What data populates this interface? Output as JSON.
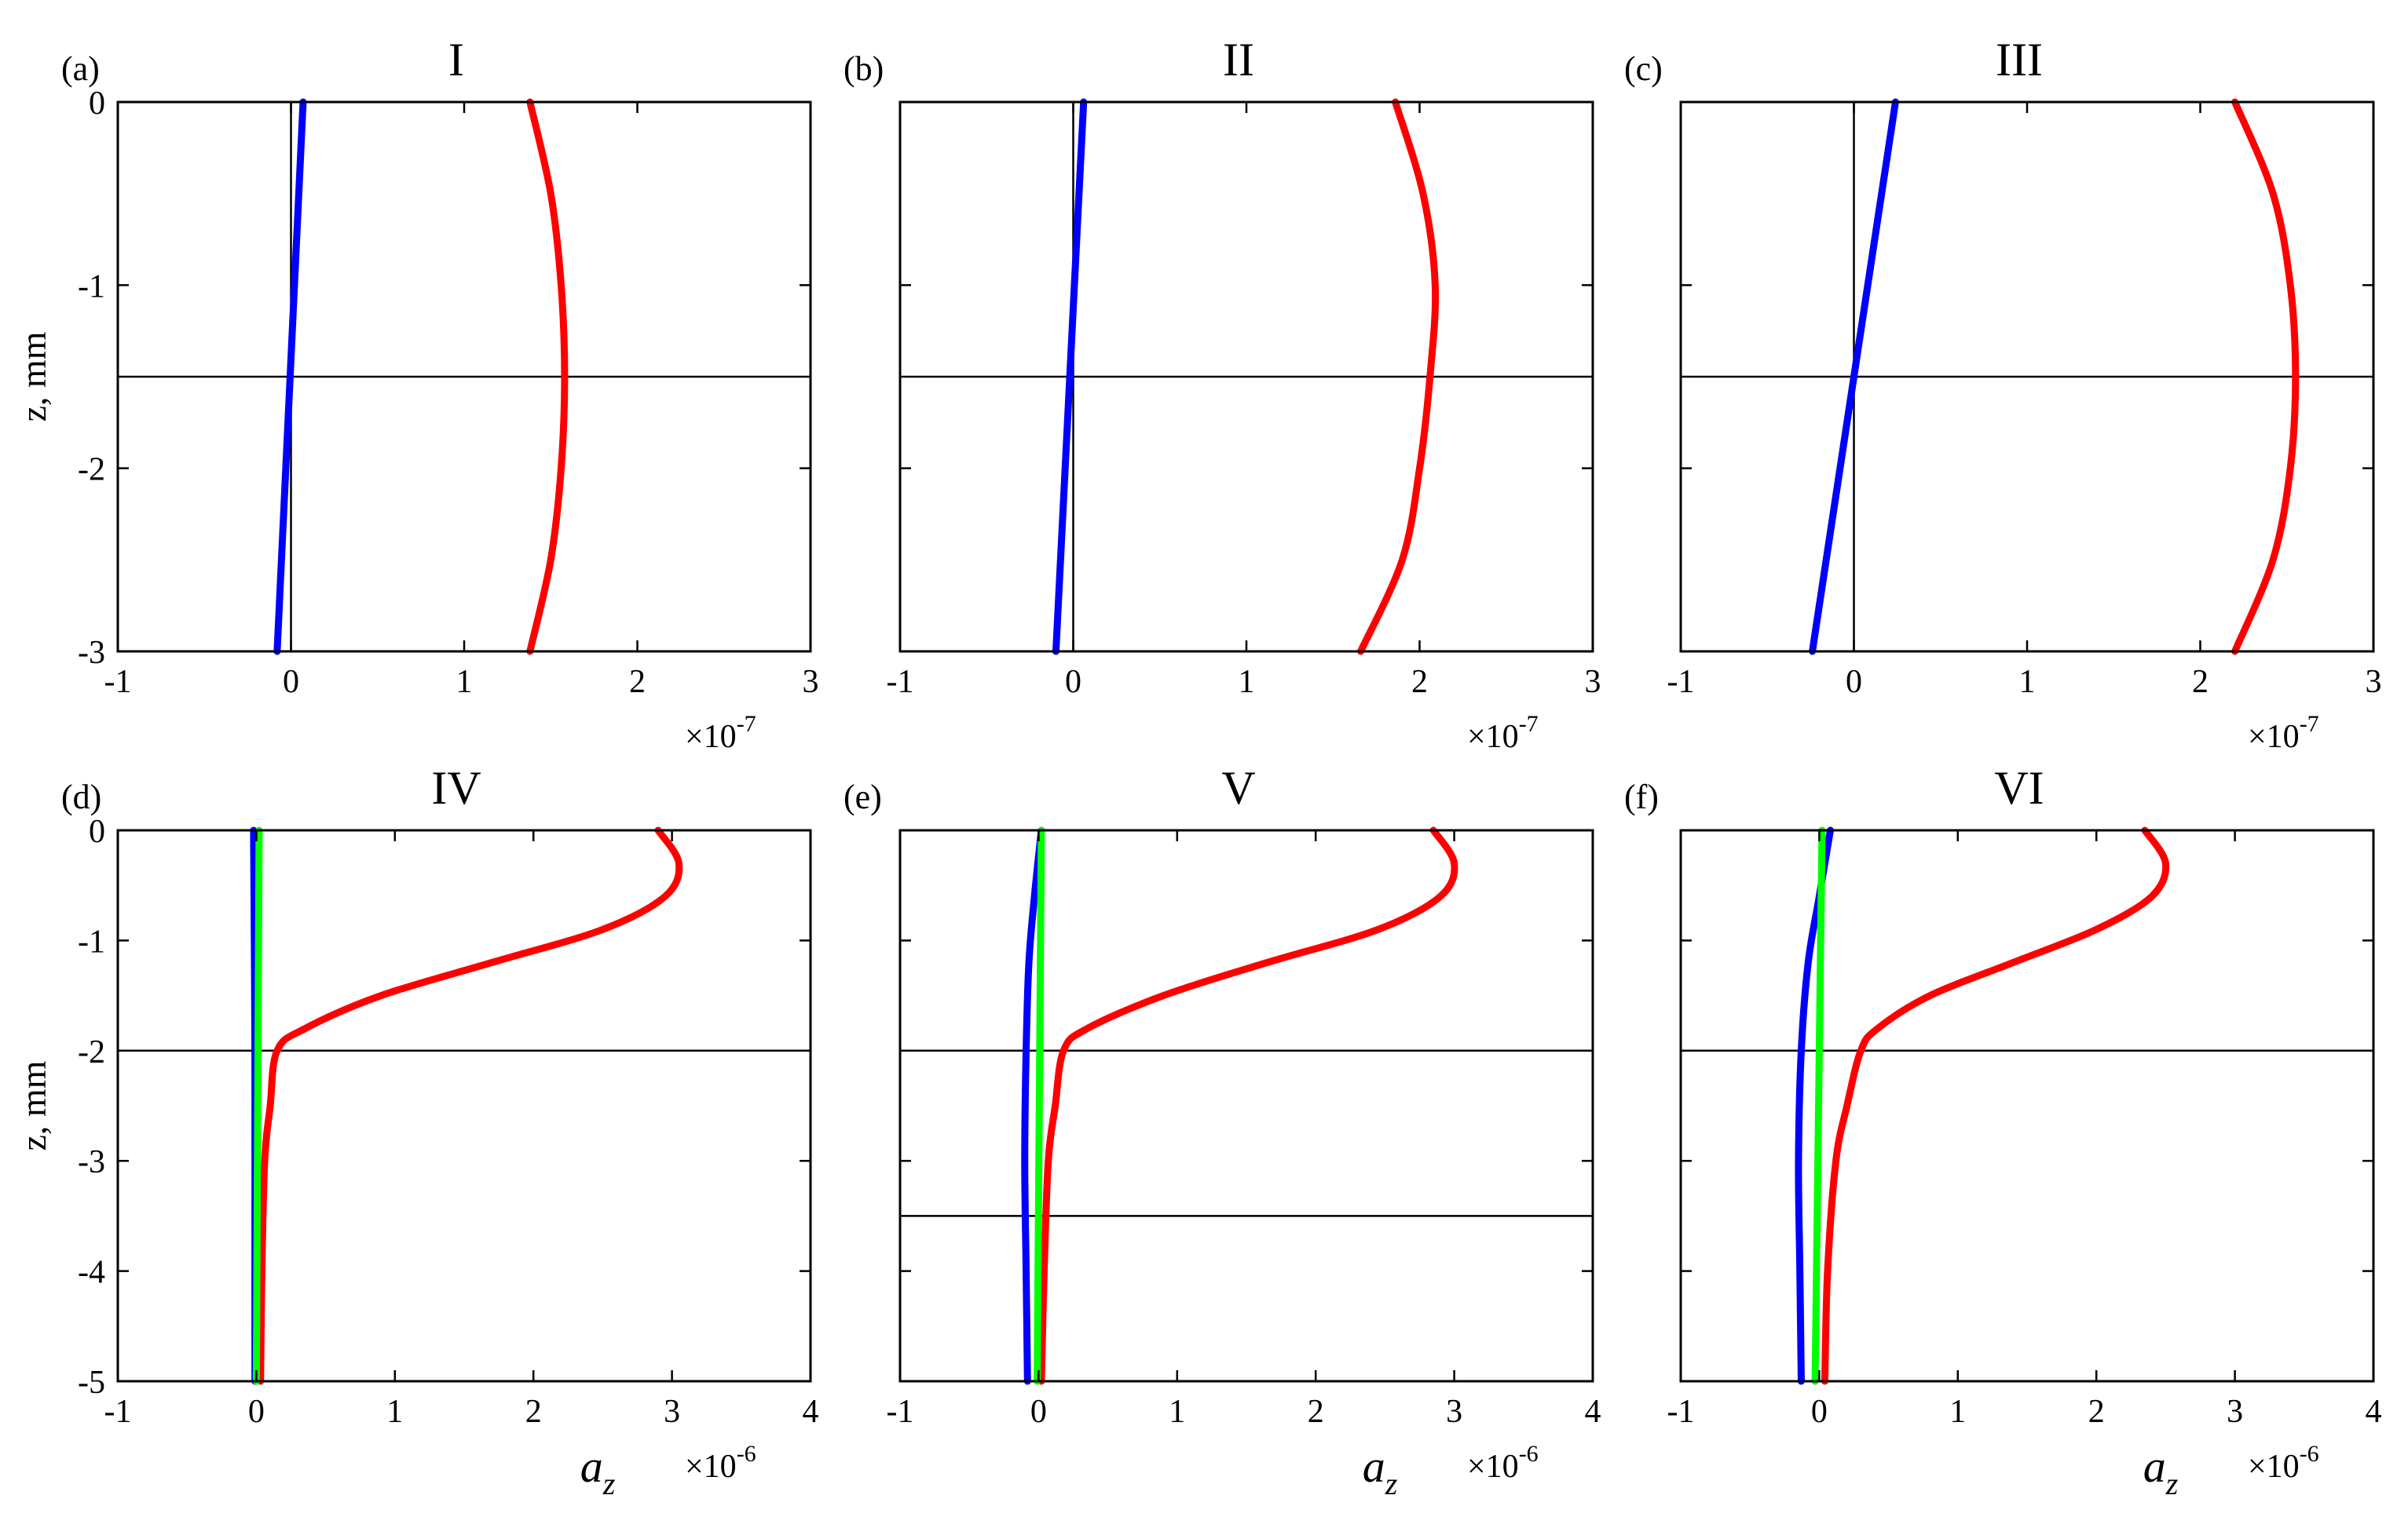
{
  "chart_data": [
    {
      "type": "line",
      "panel_label": "(a)",
      "title": "I",
      "xlabel": "",
      "ylabel": "z, mm",
      "x_multiplier": {
        "base": "×10",
        "exponent": "-7"
      },
      "xlim": [
        -1,
        3
      ],
      "ylim": [
        -3,
        0
      ],
      "xticks": [
        "-1",
        "0",
        "1",
        "2",
        "3"
      ],
      "yticks": [
        "0",
        "-1",
        "-2",
        "-3"
      ],
      "hlines": [
        -1.5
      ],
      "vlines": [
        0
      ],
      "series": [
        {
          "name": "red",
          "color": "#ff0000",
          "x": [
            1.38,
            1.5,
            1.56,
            1.58,
            1.56,
            1.5,
            1.38
          ],
          "y": [
            0,
            -0.5,
            -1.0,
            -1.5,
            -2.0,
            -2.5,
            -3.0
          ]
        },
        {
          "name": "blue",
          "color": "#0000ff",
          "x": [
            0.07,
            -0.08
          ],
          "y": [
            0,
            -3.0
          ]
        }
      ]
    },
    {
      "type": "line",
      "panel_label": "(b)",
      "title": "II",
      "xlabel": "",
      "ylabel": "",
      "x_multiplier": {
        "base": "×10",
        "exponent": "-7"
      },
      "xlim": [
        -1,
        3
      ],
      "ylim": [
        -3,
        0
      ],
      "xticks": [
        "-1",
        "0",
        "1",
        "2",
        "3"
      ],
      "yticks": [],
      "hlines": [
        -1.5
      ],
      "vlines": [
        0
      ],
      "series": [
        {
          "name": "red",
          "color": "#ff0000",
          "x": [
            1.86,
            2.02,
            2.09,
            2.06,
            2.0,
            1.9,
            1.66
          ],
          "y": [
            0,
            -0.5,
            -1.0,
            -1.5,
            -2.0,
            -2.5,
            -3.0
          ]
        },
        {
          "name": "blue",
          "color": "#0000ff",
          "x": [
            0.06,
            -0.1
          ],
          "y": [
            0,
            -3.0
          ]
        }
      ]
    },
    {
      "type": "line",
      "panel_label": "(c)",
      "title": "III",
      "xlabel": "",
      "ylabel": "",
      "x_multiplier": {
        "base": "×10",
        "exponent": "-7"
      },
      "xlim": [
        -1,
        3
      ],
      "ylim": [
        -3,
        0
      ],
      "xticks": [
        "-1",
        "0",
        "1",
        "2",
        "3"
      ],
      "yticks": [],
      "hlines": [
        -1.5
      ],
      "vlines": [
        0
      ],
      "series": [
        {
          "name": "red",
          "color": "#ff0000",
          "x": [
            2.2,
            2.42,
            2.52,
            2.55,
            2.52,
            2.42,
            2.2
          ],
          "y": [
            0,
            -0.5,
            -1.0,
            -1.5,
            -2.0,
            -2.5,
            -3.0
          ]
        },
        {
          "name": "blue",
          "color": "#0000ff",
          "x": [
            0.24,
            -0.24
          ],
          "y": [
            0,
            -3.0
          ]
        }
      ]
    },
    {
      "type": "line",
      "panel_label": "(d)",
      "title": "IV",
      "xlabel": "a_z",
      "ylabel": "z, mm",
      "x_multiplier": {
        "base": "×10",
        "exponent": "-6"
      },
      "xlim": [
        -1,
        4
      ],
      "ylim": [
        -5,
        0
      ],
      "xticks": [
        "-1",
        "0",
        "1",
        "2",
        "3",
        "4"
      ],
      "yticks": [
        "0",
        "-1",
        "-2",
        "-3",
        "-4",
        "-5"
      ],
      "hlines": [
        -2
      ],
      "vlines": [],
      "series": [
        {
          "name": "red",
          "color": "#ff0000",
          "x": [
            2.9,
            3.05,
            2.95,
            2.5,
            1.7,
            0.9,
            0.35,
            0.15,
            0.1,
            0.06,
            0.04,
            0.03
          ],
          "y": [
            0,
            -0.3,
            -0.6,
            -0.9,
            -1.2,
            -1.5,
            -1.8,
            -2.0,
            -2.5,
            -3.0,
            -4.0,
            -5.0
          ]
        },
        {
          "name": "blue",
          "color": "#0000ff",
          "x": [
            -0.02,
            -0.01,
            -0.01,
            -0.01
          ],
          "y": [
            0,
            -2.0,
            -3.5,
            -5.0
          ]
        },
        {
          "name": "green",
          "color": "#00ff00",
          "x": [
            0.02,
            0.0
          ],
          "y": [
            0,
            -5.0
          ]
        }
      ]
    },
    {
      "type": "line",
      "panel_label": "(e)",
      "title": "V",
      "xlabel": "a_z",
      "ylabel": "",
      "x_multiplier": {
        "base": "×10",
        "exponent": "-6"
      },
      "xlim": [
        -1,
        4
      ],
      "ylim": [
        -5,
        0
      ],
      "xticks": [
        "-1",
        "0",
        "1",
        "2",
        "3",
        "4"
      ],
      "yticks": [],
      "hlines": [
        -2,
        -3.5
      ],
      "vlines": [],
      "series": [
        {
          "name": "red",
          "color": "#ff0000",
          "x": [
            2.85,
            3.0,
            2.9,
            2.45,
            1.65,
            0.9,
            0.35,
            0.18,
            0.12,
            0.07,
            0.04,
            0.02
          ],
          "y": [
            0,
            -0.3,
            -0.6,
            -0.9,
            -1.2,
            -1.5,
            -1.8,
            -2.0,
            -2.5,
            -3.0,
            -4.0,
            -5.0
          ]
        },
        {
          "name": "blue",
          "color": "#0000ff",
          "x": [
            0.02,
            -0.03,
            -0.07,
            -0.09,
            -0.1,
            -0.09,
            -0.08
          ],
          "y": [
            0,
            -0.6,
            -1.2,
            -2.0,
            -3.0,
            -4.0,
            -5.0
          ]
        },
        {
          "name": "green",
          "color": "#00ff00",
          "x": [
            0.02,
            -0.01
          ],
          "y": [
            0,
            -5.0
          ]
        }
      ]
    },
    {
      "type": "line",
      "panel_label": "(f)",
      "title": "VI",
      "xlabel": "a_z",
      "ylabel": "",
      "x_multiplier": {
        "base": "×10",
        "exponent": "-6"
      },
      "xlim": [
        -1,
        4
      ],
      "ylim": [
        -5,
        0
      ],
      "xticks": [
        "-1",
        "0",
        "1",
        "2",
        "3",
        "4"
      ],
      "yticks": [],
      "hlines": [
        -2
      ],
      "vlines": [],
      "series": [
        {
          "name": "red",
          "color": "#ff0000",
          "x": [
            2.35,
            2.5,
            2.4,
            2.0,
            1.4,
            0.8,
            0.42,
            0.3,
            0.2,
            0.12,
            0.06,
            0.04
          ],
          "y": [
            0,
            -0.3,
            -0.6,
            -0.9,
            -1.2,
            -1.5,
            -1.8,
            -2.0,
            -2.5,
            -3.0,
            -4.0,
            -5.0
          ]
        },
        {
          "name": "blue",
          "color": "#0000ff",
          "x": [
            0.08,
            0.0,
            -0.08,
            -0.13,
            -0.15,
            -0.14,
            -0.13
          ],
          "y": [
            0,
            -0.6,
            -1.2,
            -2.0,
            -3.0,
            -4.0,
            -5.0
          ]
        },
        {
          "name": "green",
          "color": "#00ff00",
          "x": [
            0.02,
            -0.03
          ],
          "y": [
            0,
            -5.0
          ]
        }
      ]
    }
  ]
}
